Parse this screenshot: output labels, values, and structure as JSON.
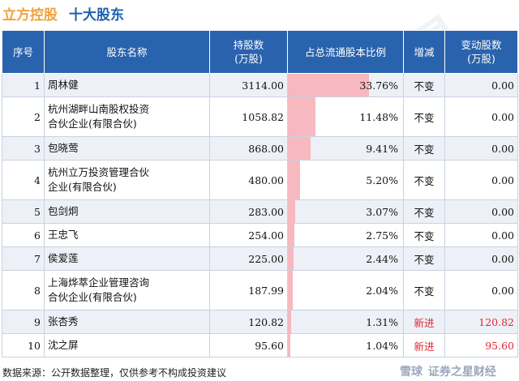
{
  "header": {
    "stock_name": "立方控股",
    "title": "十大股东"
  },
  "table": {
    "columns": [
      "序号",
      "股东名称",
      "持股数\n(万股)",
      "占总流通股本比例",
      "增减",
      "变动股数\n(万股)"
    ]
  },
  "chart_data": {
    "type": "table",
    "title": "十大股东",
    "bar_color": "#f7b8bf",
    "header_color": "#2a63ad",
    "new_entry_color": "#e3262f",
    "rows": [
      {
        "rank": "1",
        "name": "周林健",
        "shares": "3114.00",
        "ratio": 33.76,
        "ratio_label": "33.76%",
        "change": "不变",
        "delta": "0.00"
      },
      {
        "rank": "2",
        "name": "杭州湖畔山南股权投资\n合伙企业(有限合伙)",
        "shares": "1058.82",
        "ratio": 11.48,
        "ratio_label": "11.48%",
        "change": "不变",
        "delta": "0.00"
      },
      {
        "rank": "3",
        "name": "包晓莺",
        "shares": "868.00",
        "ratio": 9.41,
        "ratio_label": "9.41%",
        "change": "不变",
        "delta": "0.00"
      },
      {
        "rank": "4",
        "name": "杭州立万投资管理合伙\n企业(有限合伙)",
        "shares": "480.00",
        "ratio": 5.2,
        "ratio_label": "5.20%",
        "change": "不变",
        "delta": "0.00"
      },
      {
        "rank": "5",
        "name": "包剑炯",
        "shares": "283.00",
        "ratio": 3.07,
        "ratio_label": "3.07%",
        "change": "不变",
        "delta": "0.00"
      },
      {
        "rank": "6",
        "name": "王忠飞",
        "shares": "254.00",
        "ratio": 2.75,
        "ratio_label": "2.75%",
        "change": "不变",
        "delta": "0.00"
      },
      {
        "rank": "7",
        "name": "侯爱莲",
        "shares": "225.00",
        "ratio": 2.44,
        "ratio_label": "2.44%",
        "change": "不变",
        "delta": "0.00"
      },
      {
        "rank": "8",
        "name": "上海烨萃企业管理咨询\n合伙企业(有限合伙)",
        "shares": "187.99",
        "ratio": 2.04,
        "ratio_label": "2.04%",
        "change": "不变",
        "delta": "0.00"
      },
      {
        "rank": "9",
        "name": "张杏秀",
        "shares": "120.82",
        "ratio": 1.31,
        "ratio_label": "1.31%",
        "change": "新进",
        "delta": "120.82"
      },
      {
        "rank": "10",
        "name": "沈之屏",
        "shares": "95.60",
        "ratio": 1.04,
        "ratio_label": "1.04%",
        "change": "新进",
        "delta": "95.60"
      }
    ]
  },
  "footer": {
    "source": "数据来源：公开数据整理，仅供参考不构成投资建议",
    "brand_platform": "雪球",
    "brand_name": "证券之星财经"
  },
  "watermark": "证券之星"
}
